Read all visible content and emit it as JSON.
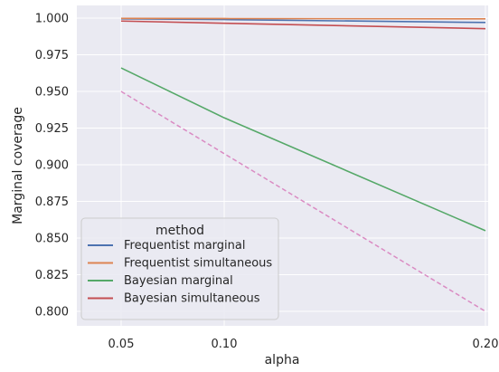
{
  "chart_data": {
    "type": "line",
    "xlabel": "alpha",
    "ylabel": "Marginal coverage",
    "x_ticks": [
      "0.05",
      "0.10",
      "0.20"
    ],
    "y_ticks": [
      "0.800",
      "0.825",
      "0.850",
      "0.875",
      "0.900",
      "0.925",
      "0.950",
      "0.975",
      "1.000"
    ],
    "xlim": [
      0.05,
      0.2
    ],
    "ylim": [
      0.79,
      1.005
    ],
    "grid": true,
    "legend": {
      "title": "method",
      "placement": "lower-left"
    },
    "series": [
      {
        "name": "Frequentist marginal",
        "color": "#4c72b0",
        "x": [
          0.05,
          0.1,
          0.2
        ],
        "y": [
          0.9995,
          0.999,
          0.997
        ],
        "style": "solid"
      },
      {
        "name": "Frequentist simultaneous",
        "color": "#dd8452",
        "x": [
          0.05,
          0.1,
          0.2
        ],
        "y": [
          0.9998,
          0.9997,
          0.9995
        ],
        "style": "solid"
      },
      {
        "name": "Bayesian marginal",
        "color": "#55a868",
        "x": [
          0.05,
          0.1,
          0.2
        ],
        "y": [
          0.966,
          0.932,
          0.855
        ],
        "style": "solid"
      },
      {
        "name": "Bayesian simultaneous",
        "color": "#c44e52",
        "x": [
          0.05,
          0.1,
          0.2
        ],
        "y": [
          0.998,
          0.9965,
          0.9928
        ],
        "style": "solid"
      }
    ],
    "reference_line": {
      "color": "#da8bc3",
      "style": "dashed",
      "x": [
        0.05,
        0.2
      ],
      "y": [
        0.95,
        0.8
      ]
    }
  }
}
